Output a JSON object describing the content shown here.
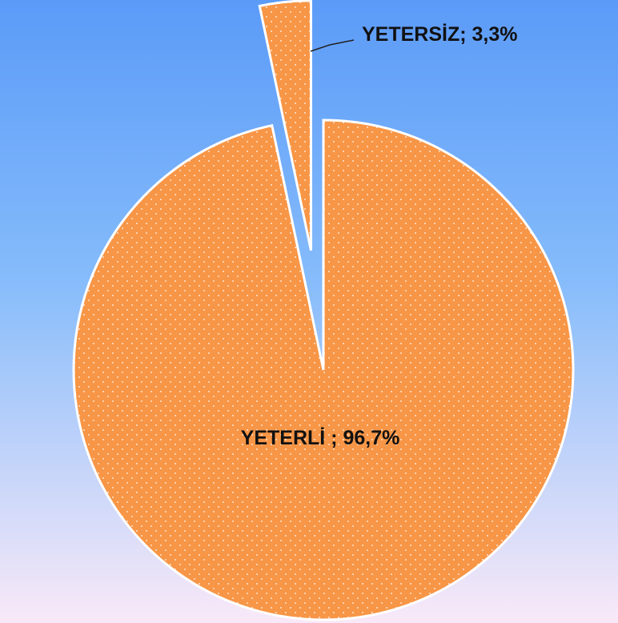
{
  "chart_data": {
    "type": "pie",
    "categories": [
      "YETERLİ",
      "YETERSİZ"
    ],
    "values": [
      96.7,
      3.3
    ],
    "value_labels": [
      " ; 96,7%",
      "; 3,3%"
    ],
    "colors": [
      "#f79646",
      "#f79646"
    ]
  }
}
